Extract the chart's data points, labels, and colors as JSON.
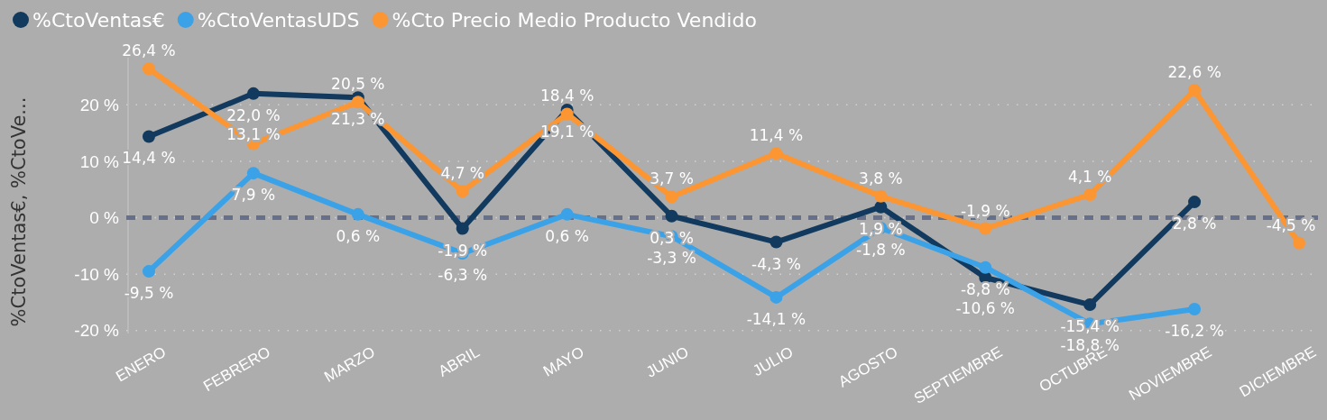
{
  "chart_data": {
    "type": "line",
    "ylabel": "%CtoVentas€, %CtoVe...",
    "categories": [
      "ENERO",
      "FEBRERO",
      "MARZO",
      "ABRIL",
      "MAYO",
      "JUNIO",
      "JULIO",
      "AGOSTO",
      "SEPTIEMBRE",
      "OCTUBRE",
      "NOVIEMBRE",
      "DICIEMBRE"
    ],
    "series": [
      {
        "name": "%CtoVentas€",
        "color": "#123a5e",
        "values": [
          14.4,
          22.0,
          21.3,
          -1.9,
          19.1,
          0.3,
          -4.3,
          1.9,
          -10.6,
          -15.4,
          2.8,
          null
        ],
        "value_labels": [
          "14,4 %",
          "22,0 %",
          "21,3 %",
          "-1,9 %",
          "19,1 %",
          "0,3 %",
          "-4,3 %",
          "1,9 %",
          "-10,6 %",
          "-15,4 %",
          "2,8 %",
          null
        ]
      },
      {
        "name": "%CtoVentasUDS",
        "color": "#3ba2e8",
        "values": [
          -9.5,
          7.9,
          0.6,
          -6.3,
          0.6,
          -3.3,
          -14.1,
          -1.8,
          -8.8,
          -18.8,
          -16.2,
          null
        ],
        "value_labels": [
          "-9,5 %",
          "7,9 %",
          "0,6 %",
          "-6,3 %",
          "0,6 %",
          "-3,3 %",
          "-14,1 %",
          "-1,8 %",
          "-8,8 %",
          "-18,8 %",
          "-16,2 %",
          null
        ]
      },
      {
        "name": "%Cto Precio Medio Producto Vendido",
        "color": "#fb9633",
        "values": [
          26.4,
          13.1,
          20.5,
          4.7,
          18.4,
          3.7,
          11.4,
          3.8,
          -1.9,
          4.1,
          22.6,
          -4.5
        ],
        "value_labels": [
          "26,4 %",
          "13,1 %",
          "20,5 %",
          "4,7 %",
          "18,4 %",
          "3,7 %",
          "11,4 %",
          "3,8 %",
          "-1,9 %",
          "4,1 %",
          "22,6 %",
          "-4,5 %"
        ]
      }
    ],
    "ylim": [
      -20.5,
      29
    ],
    "yticks": [
      {
        "value": -20,
        "label": "-20 %"
      },
      {
        "value": -10,
        "label": "-10 %"
      },
      {
        "value": 0,
        "label": "0 %"
      },
      {
        "value": 10,
        "label": "10 %"
      },
      {
        "value": 20,
        "label": "20 %"
      }
    ],
    "grid": "y",
    "legend": "top left",
    "marker": "circle",
    "line_style": "solid",
    "ref_lines": [
      {
        "axis": "y",
        "value": 0,
        "color": "#66708a",
        "line_style": "dashed"
      }
    ]
  }
}
